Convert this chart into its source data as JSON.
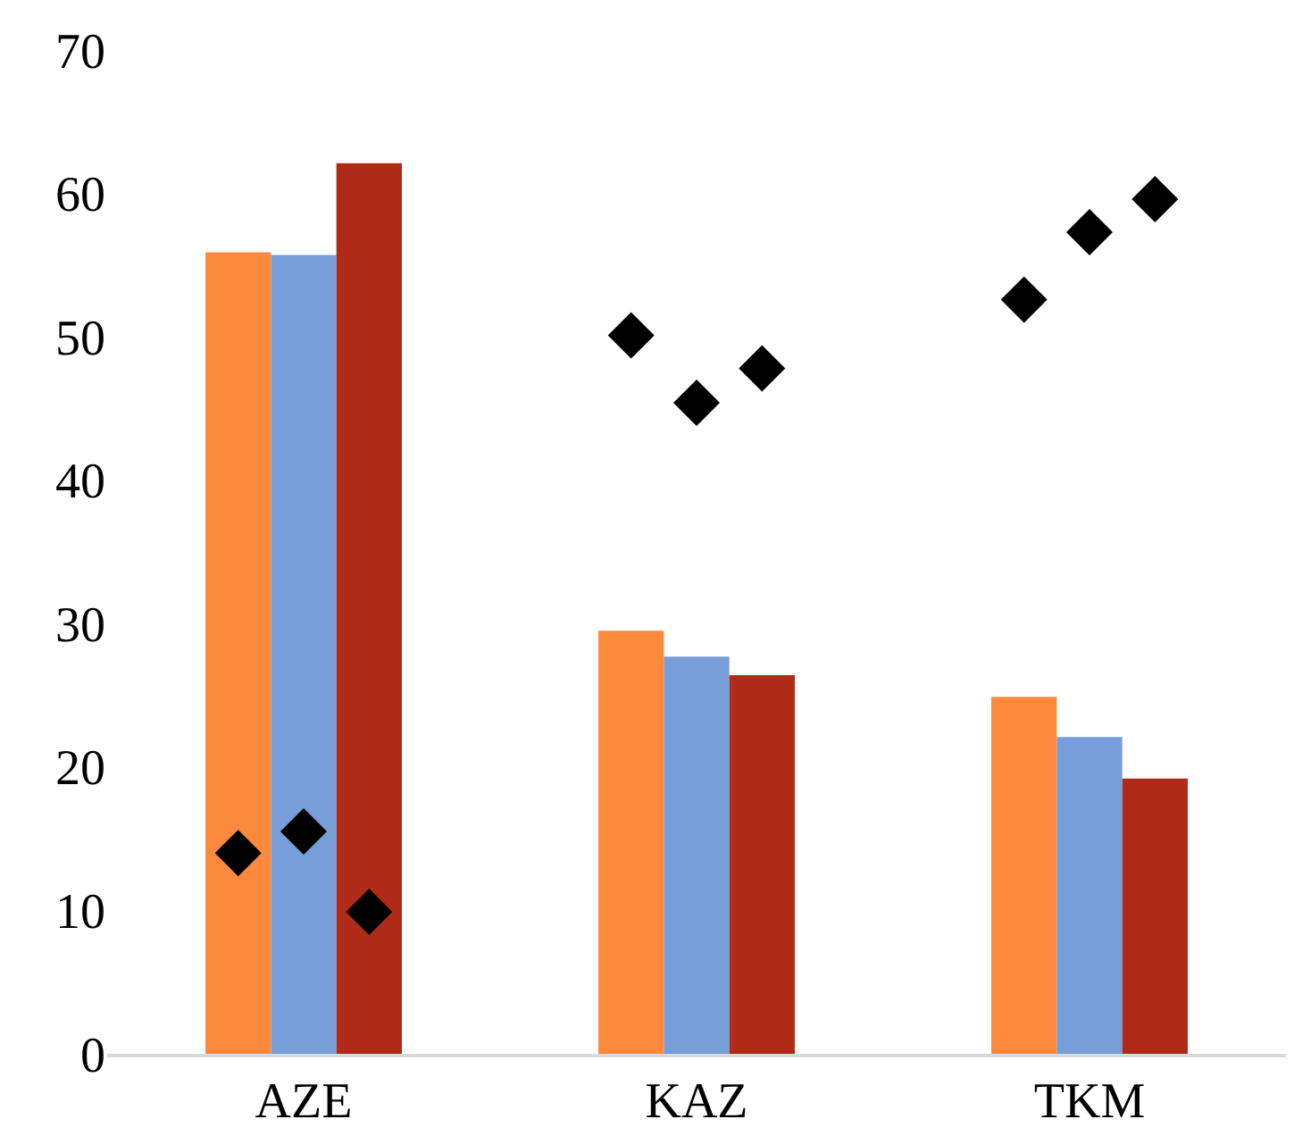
{
  "chart_data": {
    "type": "bar",
    "categories": [
      "AZE",
      "KAZ",
      "TKM"
    ],
    "series": [
      {
        "color": "#fd8a3c",
        "values": [
          55.9,
          29.5,
          24.9
        ]
      },
      {
        "color": "#779ed9",
        "values": [
          55.7,
          27.7,
          22.1
        ]
      },
      {
        "color": "#b02a18",
        "values": [
          62.1,
          26.4,
          19.2
        ]
      },
      {
        "type": "scatter",
        "color": "#000000",
        "marker": "diamond",
        "values": [
          14.0,
          50.1,
          52.6
        ]
      },
      {
        "type": "scatter",
        "color": "#000000",
        "marker": "diamond",
        "values": [
          15.5,
          45.4,
          57.3
        ]
      },
      {
        "type": "scatter",
        "color": "#000000",
        "marker": "diamond",
        "values": [
          9.9,
          47.8,
          59.6
        ]
      }
    ],
    "ylim": [
      0,
      70
    ],
    "yticks": [
      0,
      10,
      20,
      30,
      40,
      50,
      60,
      70
    ],
    "grid": false
  }
}
